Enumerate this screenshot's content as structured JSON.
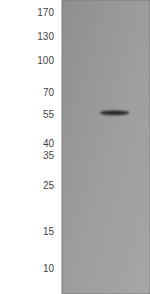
{
  "chart_data": {
    "type": "blot",
    "categories": [
      null,
      null
    ],
    "values": [
      null,
      56
    ],
    "color": "#262626",
    "log": "y",
    "ylim": [
      7.5,
      196
    ],
    "yticks": [
      170,
      130,
      100,
      70,
      55,
      40,
      35,
      25,
      15,
      10
    ],
    "grid": false,
    "tick_labels": "y"
  }
}
